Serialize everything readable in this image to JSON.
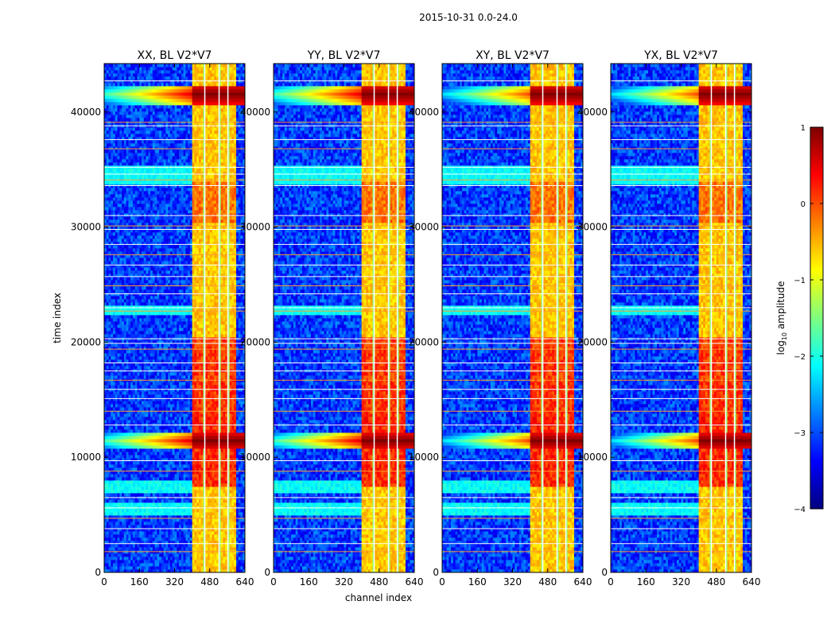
{
  "figure_title": "2015-10-31 0.0-24.0",
  "colors": {
    "jet": [
      "#00007f",
      "#0000ff",
      "#007fff",
      "#00ffff",
      "#7fff7f",
      "#ffff00",
      "#ff7f00",
      "#ff0000",
      "#7f0000"
    ],
    "frame": "#000000",
    "background": "#ffffff"
  },
  "chart_data": {
    "type": "heatmap",
    "xlabel": "channel index",
    "ylabel": "time index",
    "xlim": [
      0,
      640
    ],
    "ylim": [
      0,
      44200
    ],
    "x_ticks": [
      0,
      160,
      320,
      480,
      640
    ],
    "y_ticks": [
      0,
      10000,
      20000,
      30000,
      40000
    ],
    "panels": [
      {
        "title": "XX, BL V2*V7",
        "pol": "XX"
      },
      {
        "title": "YY, BL V2*V7",
        "pol": "YY"
      },
      {
        "title": "XY, BL V2*V7",
        "pol": "XY"
      },
      {
        "title": "YX, BL V2*V7",
        "pol": "YX"
      }
    ],
    "colorbar": {
      "label": "log",
      "label_sub": "10",
      "label_rest": " amplitude",
      "range": [
        -4,
        1
      ],
      "ticks": [
        1,
        0,
        -1,
        -2,
        -3,
        -4
      ],
      "tick_labels": [
        "1",
        "0",
        "−1",
        "−2",
        "−3",
        "−4"
      ]
    },
    "features": {
      "background_level": -3.1,
      "rfi_band_channels": [
        405,
        595
      ],
      "rfi_band_level": -0.6,
      "gap_channels": [
        [
          455,
          460
        ],
        [
          520,
          525
        ],
        [
          560,
          565
        ]
      ],
      "strong_bursts": [
        {
          "time_range": [
            40700,
            42400
          ],
          "channels": [
            405,
            640
          ],
          "level": 1.0,
          "tail_from_channel": 0
        },
        {
          "time_range": [
            10700,
            12200
          ],
          "channels": [
            405,
            640
          ],
          "level": 1.0,
          "tail_from_channel": 0
        }
      ],
      "warm_bands": [
        {
          "time_range": [
            13500,
            20500
          ],
          "level": 0.1
        },
        {
          "time_range": [
            7500,
            13500
          ],
          "level": 0.2
        },
        {
          "time_range": [
            30500,
            34000
          ],
          "level": -0.2
        }
      ],
      "flagged_rows": [
        1800,
        2500,
        3800,
        4700,
        5600,
        6500,
        8800,
        9700,
        12800,
        14000,
        15100,
        15900,
        16700,
        17500,
        18200,
        19400,
        19900,
        20300,
        22700,
        23000,
        24200,
        24900,
        25700,
        26700,
        27600,
        28500,
        29800,
        30100,
        31000,
        33600,
        34100,
        34600,
        35200,
        36800,
        37600,
        38800,
        39100,
        42700
      ],
      "cyan_bands": [
        [
          5000,
          6000
        ],
        [
          6900,
          8000
        ],
        [
          22300,
          23300
        ],
        [
          33800,
          35300
        ]
      ]
    }
  }
}
